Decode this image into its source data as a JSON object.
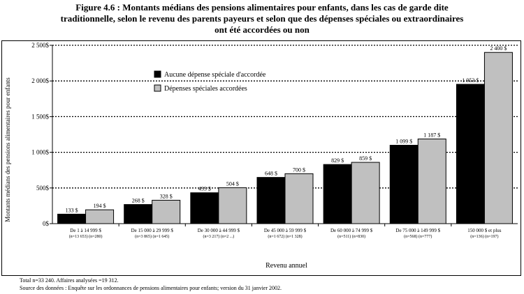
{
  "figure": {
    "title_lines": [
      "Figure 4.6 : Montants médians des pensions alimentaires pour enfants, dans les cas de garde dite",
      "traditionnelle, selon le revenu des parents payeurs et selon que des dépenses spéciales ou extraordinaires",
      "ont été accordées ou non"
    ]
  },
  "colors": {
    "series_1": "#000000",
    "series_2": "#c0c0c0"
  },
  "chart_data": {
    "type": "bar",
    "categories": [
      "De 1 à 14 999 $",
      "De 15 000 à 29 999 $",
      "De 30 000 à 44 999 $",
      "De 45 000 à 59 999 $",
      "De 60 000 à 74 999 $",
      "De 75 000 à 149 999 $",
      "150 000 $ et plus"
    ],
    "category_counts": [
      "(n=13 653)  (n=280)",
      "(n=3 865)  (n=1 645)",
      "(n=3 217)  (n=2 ...)",
      "(n=1 672)  (n=1 328)",
      "(n=511)  (n=830)",
      "(n=568)  (n=777)",
      "(n=136)  (n=197)"
    ],
    "series": [
      {
        "name": "Aucune dépense spéciale d'accordée",
        "values": [
          133,
          268,
          433,
          648,
          829,
          1099,
          1953
        ],
        "labels": [
          "133 $",
          "268 $",
          "433 $",
          "648 $",
          "829 $",
          "1 099 $",
          "1 953 $"
        ]
      },
      {
        "name": "Dépenses spéciales accordées",
        "values": [
          194,
          328,
          504,
          700,
          859,
          1187,
          2400
        ],
        "labels": [
          "194 $",
          "328 $",
          "504 $",
          "700 $",
          "859 $",
          "1 187 $",
          "2 400 $"
        ]
      }
    ],
    "xlabel": "Revenu annuel",
    "ylabel": "Montants médians des pensions alimentaires pour enfants",
    "ylim": [
      0,
      2500
    ],
    "yticks": [
      0,
      500,
      1000,
      1500,
      2000,
      2500
    ],
    "ytick_labels": [
      "0$",
      "500$",
      "1 000$",
      "1 500$",
      "2 000$",
      "2 500$"
    ],
    "grid": true,
    "legend_position": "top-left"
  },
  "notes": {
    "total": "Total n=33 240.   Affaires analysées =19 312.",
    "source": "Source des données : Enquête sur les ordonnances de pensions alimentaires pour enfants; version du 31 janvier 2002."
  }
}
